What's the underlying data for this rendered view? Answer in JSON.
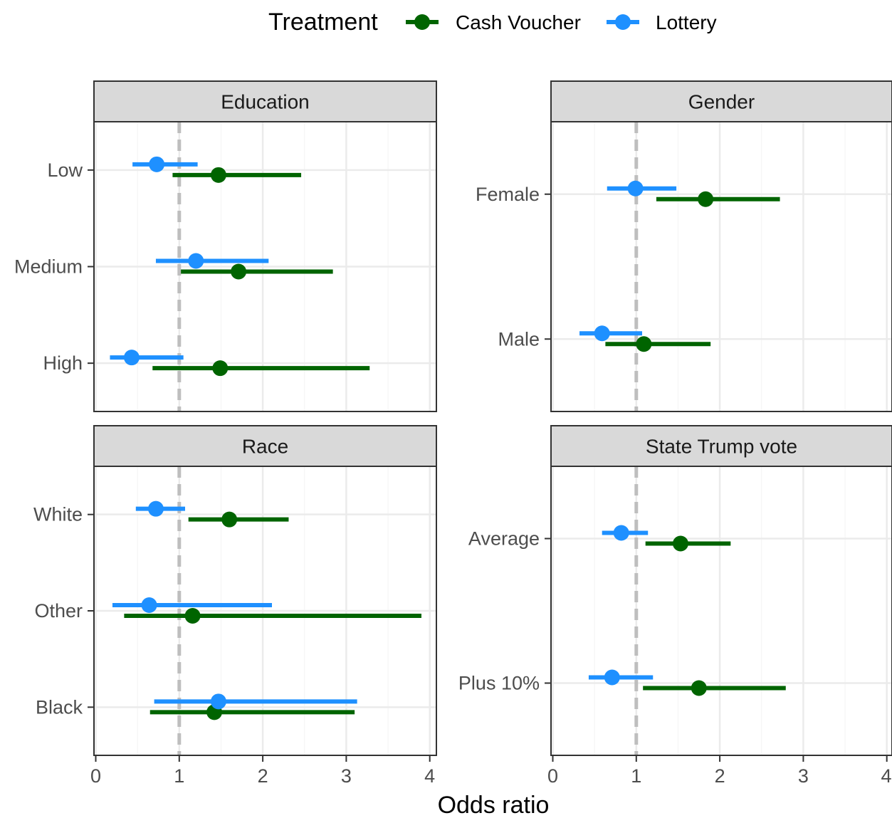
{
  "legend": {
    "title": "Treatment",
    "position": "top",
    "items": [
      {
        "label": "Cash Voucher",
        "color": "#006400"
      },
      {
        "label": "Lottery",
        "color": "#1E90FF"
      }
    ]
  },
  "x_axis_title": "Odds ratio",
  "chart_data": {
    "type": "forest",
    "xlabel": "Odds ratio",
    "xlim": [
      0,
      4
    ],
    "xticks": [
      "0",
      "1",
      "2",
      "3",
      "4"
    ],
    "reference_line": {
      "x": 1,
      "style": "dashed",
      "color": "#BEBEBE"
    },
    "grid": true,
    "legend_placement": "top",
    "series_names": [
      "Cash Voucher",
      "Lottery"
    ],
    "series_colors": {
      "Cash Voucher": "#006400",
      "Lottery": "#1E90FF"
    },
    "panels": [
      {
        "title": "Education",
        "categories": [
          "High",
          "Medium",
          "Low"
        ],
        "series": [
          {
            "name": "Cash Voucher",
            "points": [
              {
                "category": "High",
                "estimate": 1.49,
                "lower": 0.68,
                "upper": 3.28
              },
              {
                "category": "Medium",
                "estimate": 1.71,
                "lower": 1.02,
                "upper": 2.84
              },
              {
                "category": "Low",
                "estimate": 1.47,
                "lower": 0.92,
                "upper": 2.46
              }
            ]
          },
          {
            "name": "Lottery",
            "points": [
              {
                "category": "High",
                "estimate": 0.43,
                "lower": 0.17,
                "upper": 1.05
              },
              {
                "category": "Medium",
                "estimate": 1.2,
                "lower": 0.72,
                "upper": 2.07
              },
              {
                "category": "Low",
                "estimate": 0.73,
                "lower": 0.44,
                "upper": 1.22
              }
            ]
          }
        ]
      },
      {
        "title": "Gender",
        "categories": [
          "Male",
          "Female"
        ],
        "series": [
          {
            "name": "Cash Voucher",
            "points": [
              {
                "category": "Male",
                "estimate": 1.09,
                "lower": 0.63,
                "upper": 1.89
              },
              {
                "category": "Female",
                "estimate": 1.83,
                "lower": 1.24,
                "upper": 2.72
              }
            ]
          },
          {
            "name": "Lottery",
            "points": [
              {
                "category": "Male",
                "estimate": 0.59,
                "lower": 0.32,
                "upper": 1.07
              },
              {
                "category": "Female",
                "estimate": 0.99,
                "lower": 0.65,
                "upper": 1.48
              }
            ]
          }
        ]
      },
      {
        "title": "Race",
        "categories": [
          "Black",
          "Other",
          "White"
        ],
        "series": [
          {
            "name": "Cash Voucher",
            "points": [
              {
                "category": "Black",
                "estimate": 1.42,
                "lower": 0.65,
                "upper": 3.1
              },
              {
                "category": "Other",
                "estimate": 1.16,
                "lower": 0.34,
                "upper": 3.9
              },
              {
                "category": "White",
                "estimate": 1.6,
                "lower": 1.11,
                "upper": 2.31
              }
            ]
          },
          {
            "name": "Lottery",
            "points": [
              {
                "category": "Black",
                "estimate": 1.47,
                "lower": 0.7,
                "upper": 3.13
              },
              {
                "category": "Other",
                "estimate": 0.64,
                "lower": 0.2,
                "upper": 2.11
              },
              {
                "category": "White",
                "estimate": 0.72,
                "lower": 0.48,
                "upper": 1.07
              }
            ]
          }
        ]
      },
      {
        "title": "State Trump vote",
        "categories": [
          "Plus 10%",
          "Average"
        ],
        "series": [
          {
            "name": "Cash Voucher",
            "points": [
              {
                "category": "Plus 10%",
                "estimate": 1.75,
                "lower": 1.08,
                "upper": 2.79
              },
              {
                "category": "Average",
                "estimate": 1.53,
                "lower": 1.11,
                "upper": 2.13
              }
            ]
          },
          {
            "name": "Lottery",
            "points": [
              {
                "category": "Plus 10%",
                "estimate": 0.71,
                "lower": 0.43,
                "upper": 1.2
              },
              {
                "category": "Average",
                "estimate": 0.82,
                "lower": 0.59,
                "upper": 1.14
              }
            ]
          }
        ]
      }
    ]
  }
}
